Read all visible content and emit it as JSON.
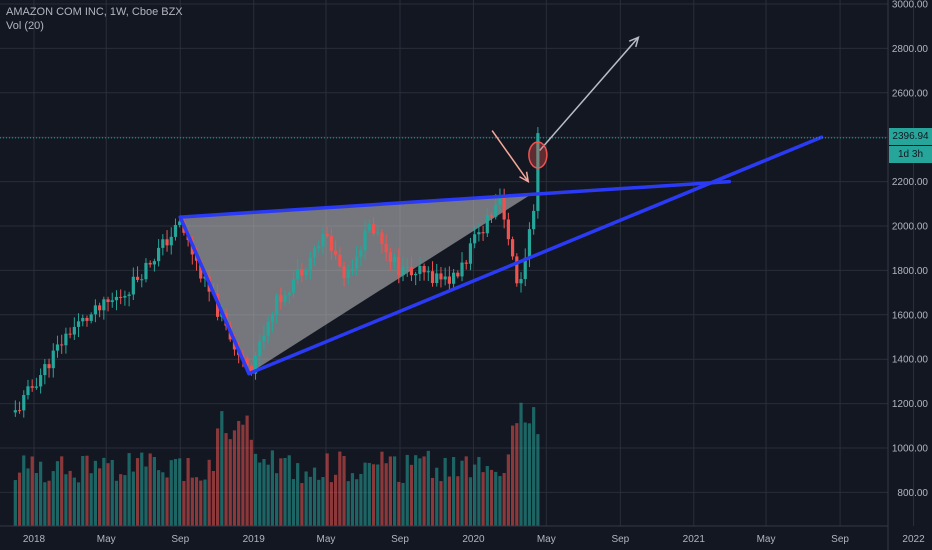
{
  "header": {
    "symbol_title": "AMAZON COM INC, 1W, Cboe BZX",
    "volume_label": "Vol (20)"
  },
  "price_scale": {
    "ticks": [
      "3000.00",
      "2800.00",
      "2600.00",
      "2400.00",
      "2200.00",
      "2000.00",
      "1800.00",
      "1600.00",
      "1400.00",
      "1200.00",
      "1000.00",
      "800.00"
    ],
    "current_price": "2396.94",
    "countdown": "1d 3h"
  },
  "time_axis": {
    "labels": [
      "2018",
      "May",
      "Sep",
      "2019",
      "May",
      "Sep",
      "2020",
      "May",
      "Sep",
      "2021",
      "May",
      "Sep",
      "2022"
    ]
  },
  "colors": {
    "background": "#131722",
    "grid": "#2a2e39",
    "up": "#26a69a",
    "down": "#ef5350",
    "triangle_line": "#2b3bf5",
    "triangle_fill": "#c7c7c7",
    "price_line": "#26a69a"
  },
  "chart_data": {
    "type": "candlestick",
    "title": "AMAZON COM INC, 1W, Cboe BZX",
    "timeframe": "1W",
    "x_range": [
      "2017-12",
      "2022-01"
    ],
    "ylim": [
      700,
      3000
    ],
    "current_price": 2396.94,
    "price_keypoints": [
      {
        "date": "2017-12-01",
        "price": 1160
      },
      {
        "date": "2018-03-01",
        "price": 1530
      },
      {
        "date": "2018-06-01",
        "price": 1700
      },
      {
        "date": "2018-09-01",
        "price": 2010
      },
      {
        "date": "2018-10-15",
        "price": 1720
      },
      {
        "date": "2018-12-24",
        "price": 1340
      },
      {
        "date": "2019-02-01",
        "price": 1630
      },
      {
        "date": "2019-05-01",
        "price": 1960
      },
      {
        "date": "2019-06-01",
        "price": 1770
      },
      {
        "date": "2019-07-15",
        "price": 2010
      },
      {
        "date": "2019-09-01",
        "price": 1800
      },
      {
        "date": "2019-12-01",
        "price": 1760
      },
      {
        "date": "2020-02-15",
        "price": 2150
      },
      {
        "date": "2020-03-15",
        "price": 1690
      },
      {
        "date": "2020-04-10",
        "price": 2050
      },
      {
        "date": "2020-04-17",
        "price": 2396.94
      }
    ],
    "volume_panel": {
      "label": "Vol (20)",
      "ylim": [
        700,
        1300
      ]
    },
    "drawings": [
      {
        "type": "triangle",
        "points": [
          {
            "date": "2018-09-01",
            "price": 2040
          },
          {
            "date": "2018-12-24",
            "price": 1335
          },
          {
            "date": "2020-04-10",
            "price": 2150
          }
        ]
      },
      {
        "type": "trend_line",
        "from": {
          "date": "2018-12-24",
          "price": 1335
        },
        "to": {
          "date": "2021-08-01",
          "price": 2400
        }
      },
      {
        "type": "trend_line",
        "from": {
          "date": "2018-09-01",
          "price": 2040
        },
        "to": {
          "date": "2021-03-01",
          "price": 2200
        }
      },
      {
        "type": "arrow",
        "from": {
          "date": "2020-04-20",
          "price": 2340
        },
        "to": {
          "date": "2020-10-01",
          "price": 2850
        }
      },
      {
        "type": "arrow",
        "from": {
          "date": "2020-02-01",
          "price": 2430
        },
        "to": {
          "date": "2020-04-01",
          "price": 2200
        }
      },
      {
        "type": "ellipse",
        "center": {
          "date": "2020-04-17",
          "price": 2320
        }
      }
    ]
  }
}
